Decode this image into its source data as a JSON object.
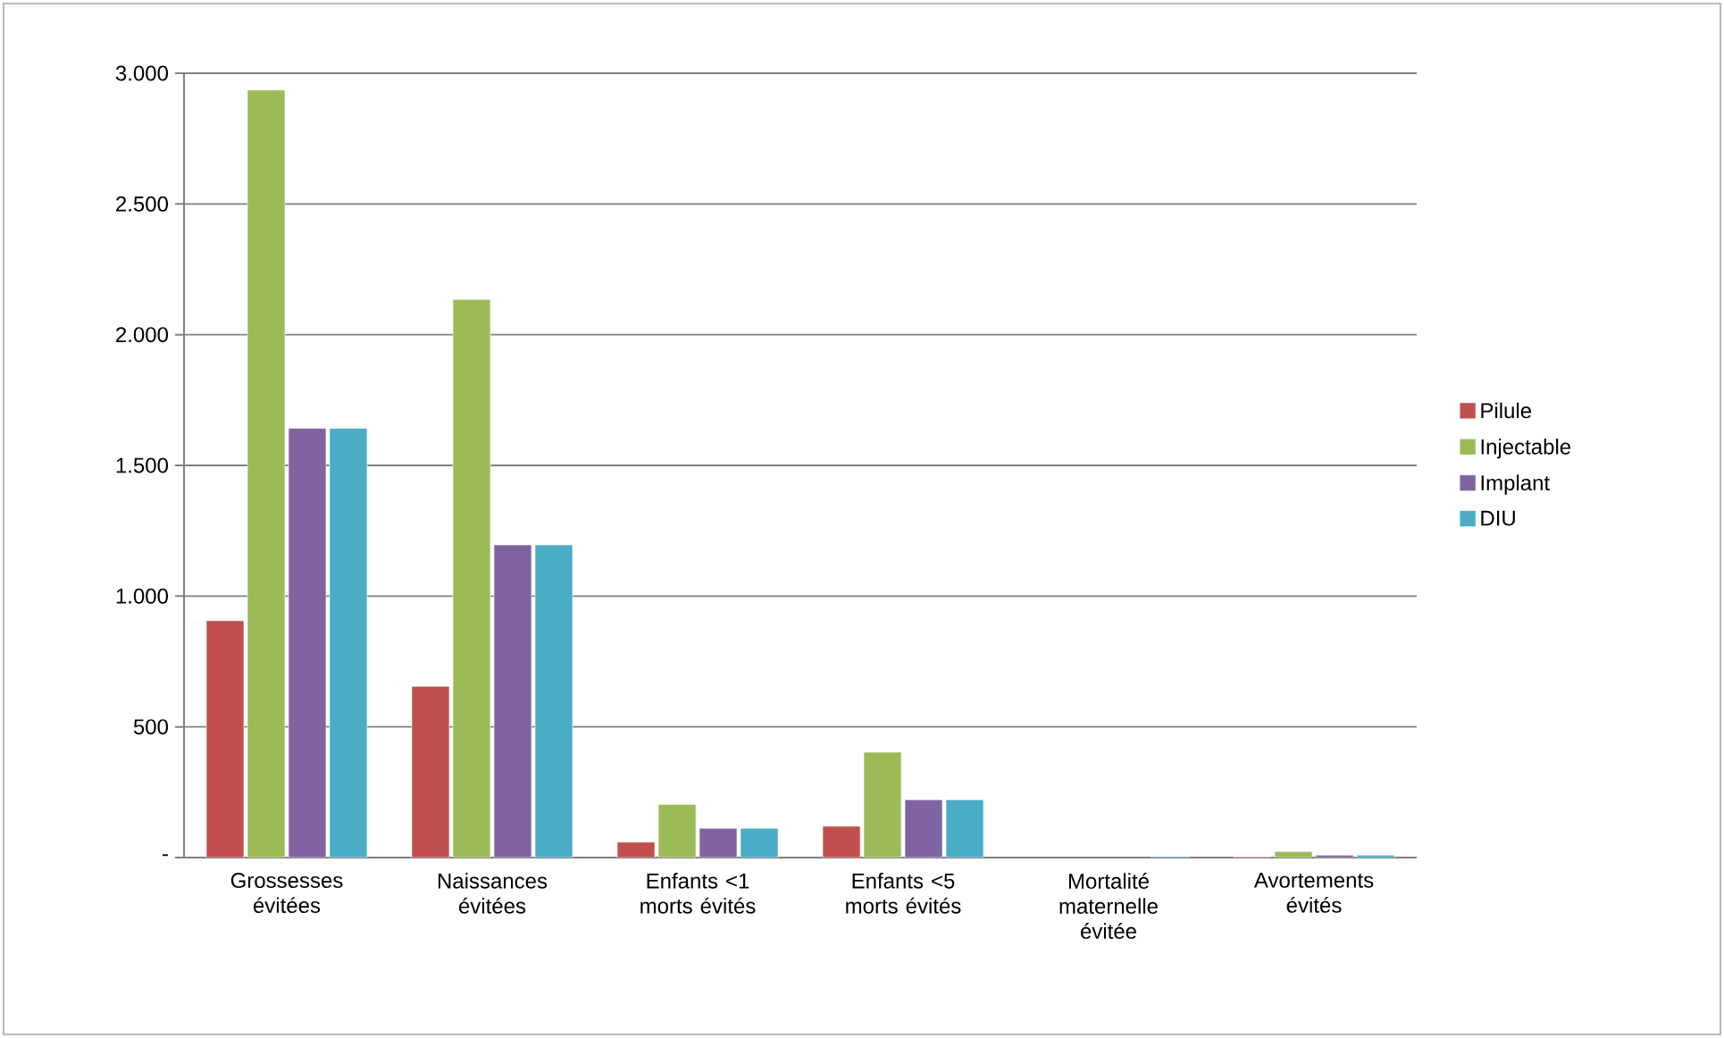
{
  "chart_data": {
    "type": "bar",
    "categories": [
      "Grossesses évitées",
      "Naissances évitées",
      "Enfants <1 morts évités",
      "Enfants <5 morts évités",
      "Mortalité maternelle évitée",
      "Avortements évités"
    ],
    "series": [
      {
        "name": "Pilule",
        "color": "#c0504d",
        "values": [
          906,
          655,
          59,
          120,
          null,
          3
        ]
      },
      {
        "name": "Injectable",
        "color": "#9bbb59",
        "values": [
          2936,
          2135,
          203,
          403,
          null,
          23
        ]
      },
      {
        "name": "Implant",
        "color": "#8064a2",
        "values": [
          1642,
          1196,
          112,
          221,
          null,
          9
        ]
      },
      {
        "name": "DIU",
        "color": "#4bacc6",
        "values": [
          1642,
          1196,
          112,
          221,
          4,
          9
        ]
      }
    ],
    "ylim": [
      0,
      3000
    ],
    "yticks": [
      {
        "value": 0,
        "label": "-"
      },
      {
        "value": 500,
        "label": "500"
      },
      {
        "value": 1000,
        "label": "1.000"
      },
      {
        "value": 1500,
        "label": "1.500"
      },
      {
        "value": 2000,
        "label": "2.000"
      },
      {
        "value": 2500,
        "label": "2.500"
      },
      {
        "value": 3000,
        "label": "3.000"
      }
    ],
    "grid": "y",
    "legend": "right"
  }
}
